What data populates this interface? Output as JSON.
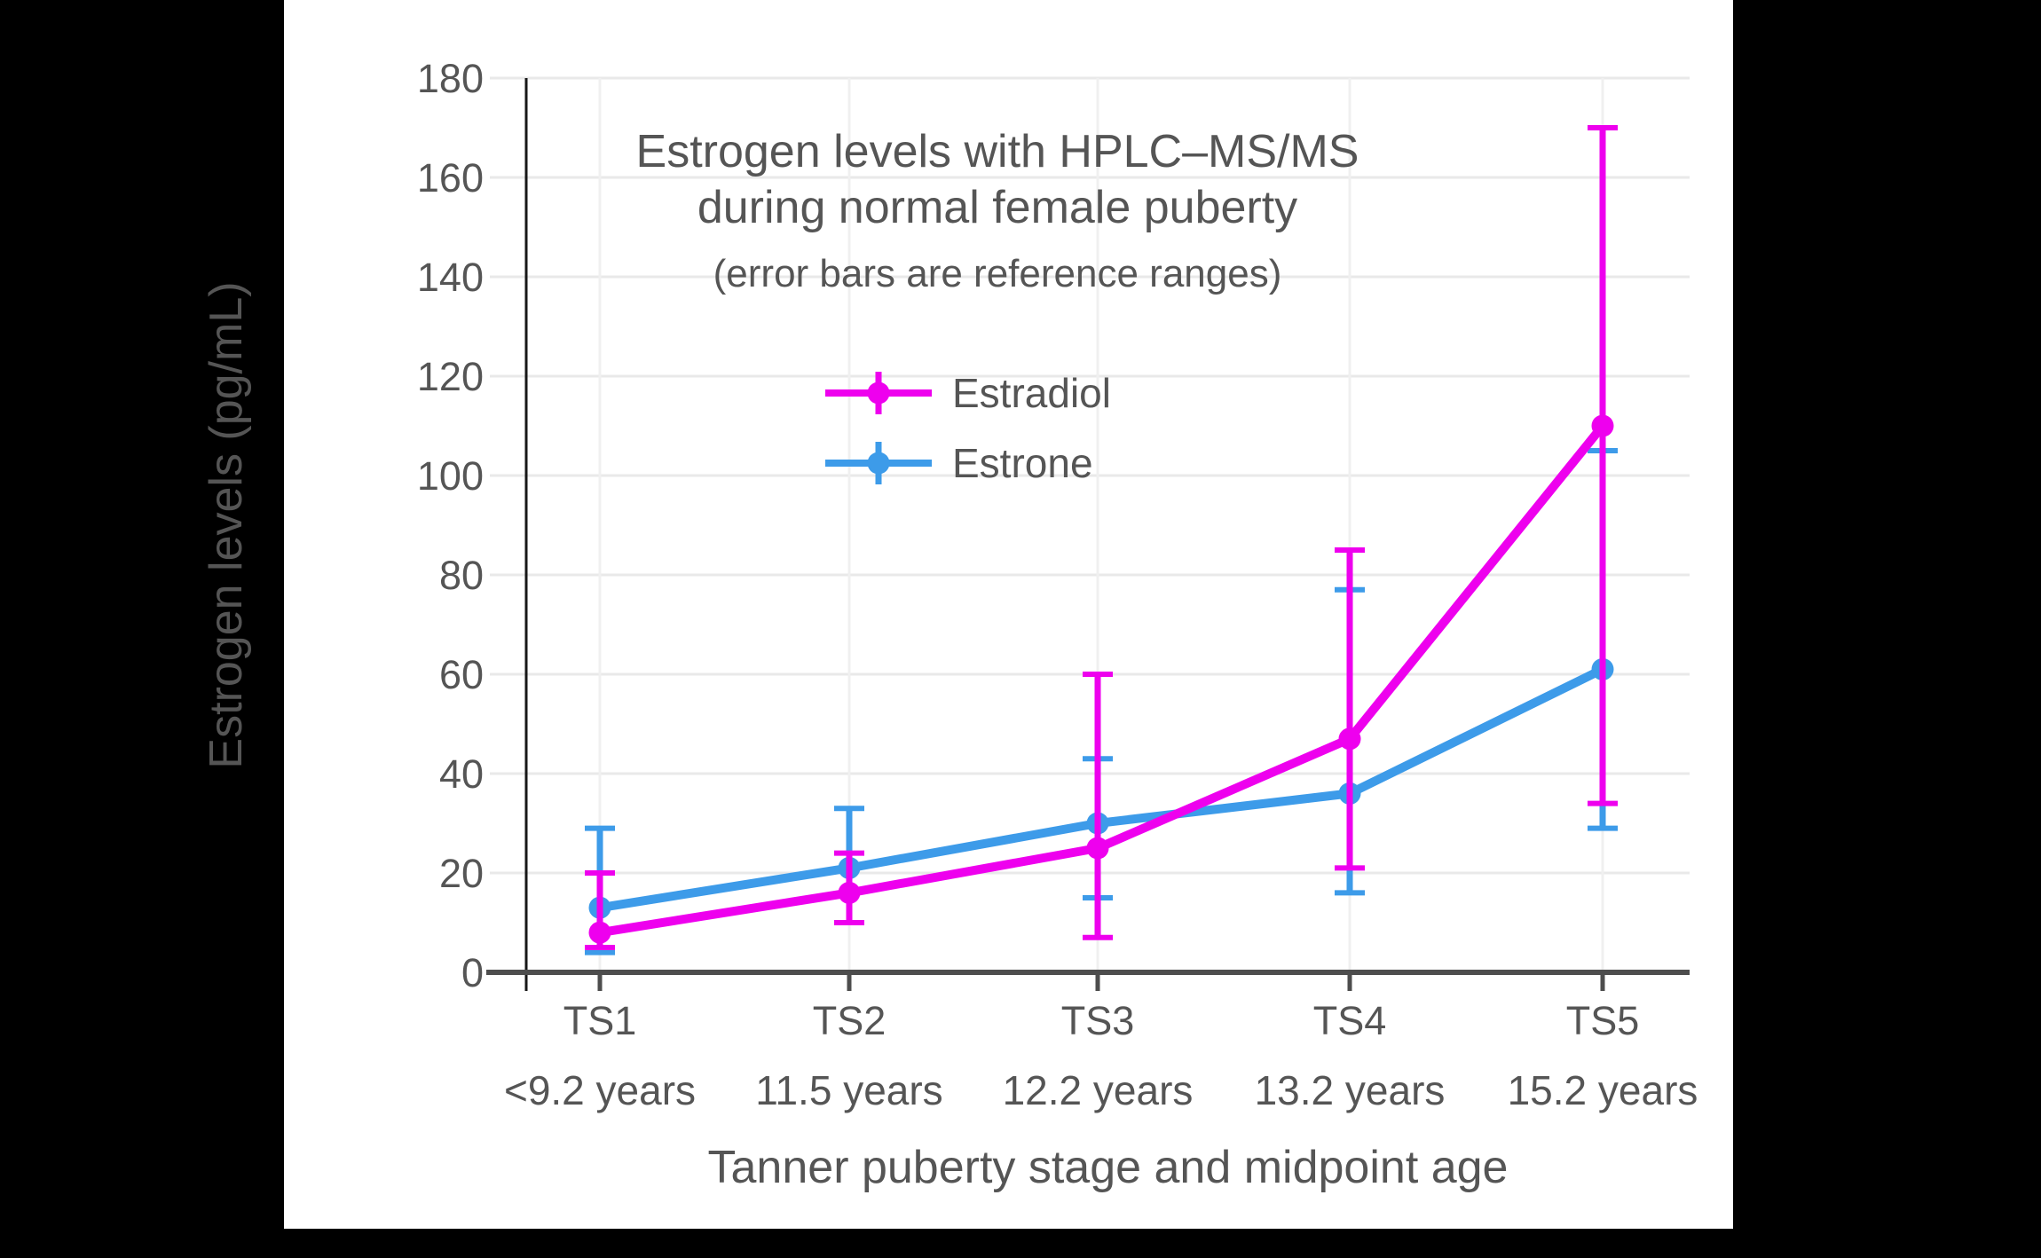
{
  "figure": {
    "background_color": "#000000",
    "panel_color": "#ffffff",
    "text_color": "#555555",
    "grid_color": "#e9e9e9",
    "vgrid_color": "#f0f0f0",
    "x_axis_color": "#4d4d4d",
    "y_axis_color": "#171717"
  },
  "chart_data": {
    "type": "line",
    "title_lines": [
      "Estrogen levels with HPLC–MS/MS",
      "during normal female puberty"
    ],
    "subtitle": "(error bars are reference ranges)",
    "xlabel": "Tanner puberty stage and midpoint age",
    "ylabel": "Estrogen levels (pg/mL)",
    "units": "pg/mL",
    "categories": [
      "TS1",
      "TS2",
      "TS3",
      "TS4",
      "TS5"
    ],
    "category_ages": [
      "<9.2 years",
      "11.5 years",
      "12.2 years",
      "13.2 years",
      "15.2 years"
    ],
    "ylim": [
      0,
      180
    ],
    "yticks": [
      0,
      20,
      40,
      60,
      80,
      100,
      120,
      140,
      160,
      180
    ],
    "grid": true,
    "legend_position": "inside-upper-left",
    "error_bar_meaning": "reference ranges",
    "series": [
      {
        "name": "Estradiol",
        "color": "#ee00ee",
        "values": [
          8,
          16,
          25,
          47,
          110
        ],
        "error_low": [
          5,
          10,
          7,
          21,
          34
        ],
        "error_high": [
          20,
          24,
          60,
          85,
          170
        ]
      },
      {
        "name": "Estrone",
        "color": "#3d9be9",
        "values": [
          13,
          21,
          30,
          36,
          61
        ],
        "error_low": [
          4,
          10,
          15,
          16,
          29
        ],
        "error_high": [
          29,
          33,
          43,
          77,
          105
        ]
      }
    ]
  }
}
